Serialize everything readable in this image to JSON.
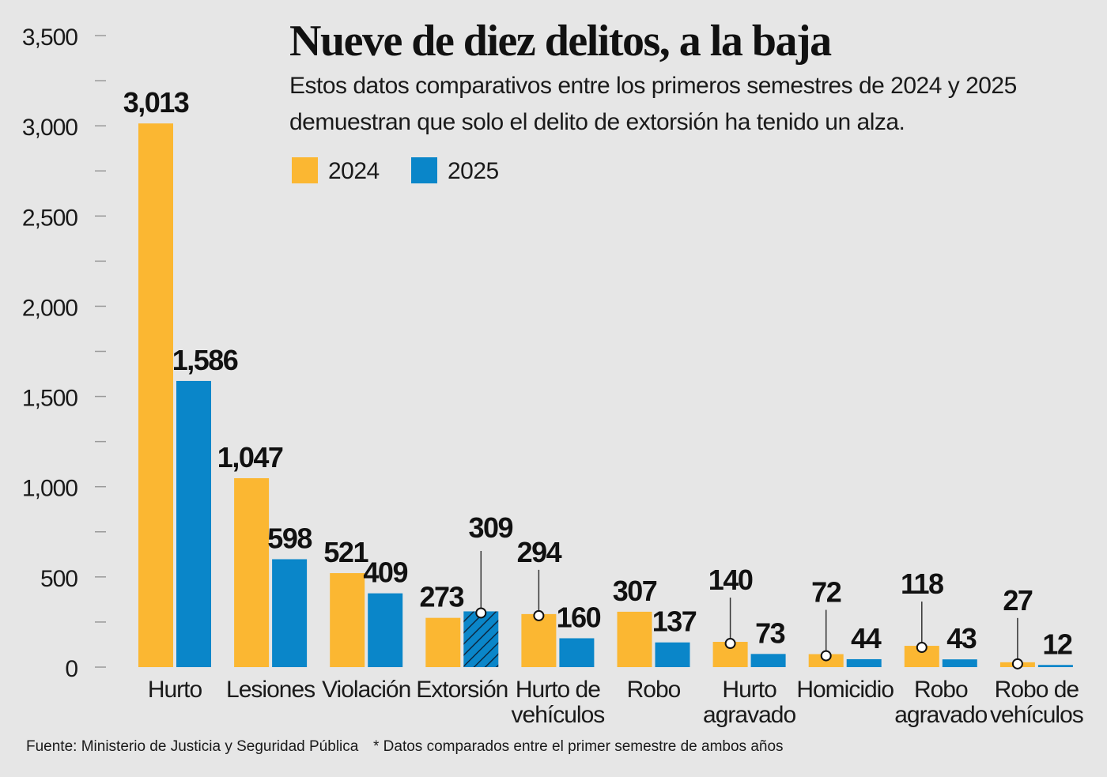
{
  "title": "Nueve de diez delitos, a la baja",
  "subtitle": "Estos datos comparativos entre los primeros semestres de 2024 y 2025 demuestran que solo el delito de extorsión ha tenido un alza.",
  "legend": [
    {
      "label": "2024",
      "color": "#fbb732"
    },
    {
      "label": "2025",
      "color": "#0a86c9"
    }
  ],
  "footer": {
    "source": "Fuente: Ministerio de Justicia y Seguridad Pública",
    "note": "* Datos comparados entre el primer semestre de ambos años"
  },
  "chart_data": {
    "type": "bar",
    "title": "Nueve de diez delitos, a la baja",
    "categories": [
      [
        "Hurto"
      ],
      [
        "Lesiones"
      ],
      [
        "Violación"
      ],
      [
        "Extorsión"
      ],
      [
        "Hurto de",
        "vehículos"
      ],
      [
        "Robo"
      ],
      [
        "Hurto",
        "agravado"
      ],
      [
        "Homicidio"
      ],
      [
        "Robo",
        "agravado"
      ],
      [
        "Robo de",
        "vehículos"
      ]
    ],
    "series": [
      {
        "name": "2024",
        "color": "#fbb732",
        "values": [
          3013,
          1047,
          521,
          273,
          294,
          307,
          140,
          72,
          118,
          27
        ]
      },
      {
        "name": "2025",
        "color": "#0a86c9",
        "values": [
          1586,
          598,
          409,
          309,
          160,
          137,
          73,
          44,
          43,
          12
        ]
      }
    ],
    "value_labels": [
      [
        "3,013",
        "1,586"
      ],
      [
        "1,047",
        "598"
      ],
      [
        "521",
        "409"
      ],
      [
        "273",
        "309"
      ],
      [
        "294",
        "160"
      ],
      [
        "307",
        "137"
      ],
      [
        "140",
        "73"
      ],
      [
        "72",
        "44"
      ],
      [
        "118",
        "43"
      ],
      [
        "27",
        "12"
      ]
    ],
    "highlight": {
      "category_index": 3,
      "series_index": 1,
      "pattern": "hatched"
    },
    "ylim": [
      0,
      3500
    ],
    "yticks": [
      0,
      500,
      1000,
      1500,
      2000,
      2500,
      3000,
      3500
    ],
    "ytick_labels": [
      "0",
      "500",
      "1,000",
      "1,500",
      "2,000",
      "2,500",
      "3,000",
      "3,500"
    ],
    "minor_tick_step": 250,
    "grid": false,
    "legend_position": "top"
  }
}
